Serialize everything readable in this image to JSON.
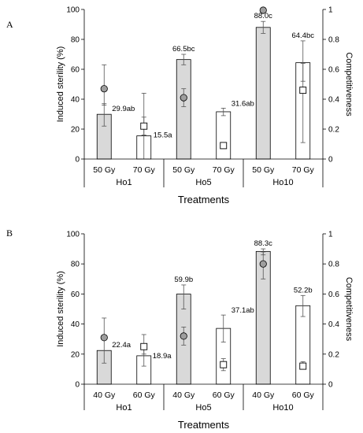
{
  "chart_data": [
    {
      "type": "bar",
      "panel": "A",
      "xlabel": "Treatments",
      "ylabel": "Induced sterility (%)",
      "y2label": "Competitiveness",
      "ylim": [
        0,
        100
      ],
      "y2lim": [
        0,
        1
      ],
      "yticks": [
        "0",
        "20",
        "40",
        "60",
        "80",
        "100"
      ],
      "y2ticks": [
        "0",
        "0.2",
        "0.4",
        "0.6",
        "0.8",
        "1"
      ],
      "groups": [
        "Ho1",
        "Ho5",
        "Ho10"
      ],
      "doses": [
        "50 Gy",
        "70 Gy",
        "50 Gy",
        "70 Gy",
        "50 Gy",
        "70 Gy"
      ],
      "bars": [
        {
          "value": 29.9,
          "low": 22,
          "high": 37,
          "label": "29.9ab",
          "fill": "#d9d9d9"
        },
        {
          "value": 15.5,
          "low": 0,
          "high": 44,
          "label": "15.5a",
          "fill": "#ffffff"
        },
        {
          "value": 66.5,
          "low": 63,
          "high": 70,
          "label": "66.5bc",
          "fill": "#d9d9d9"
        },
        {
          "value": 31.6,
          "low": 29,
          "high": 34,
          "label": "31.6ab",
          "fill": "#ffffff"
        },
        {
          "value": 88.0,
          "low": 84,
          "high": 92,
          "label": "88.0c",
          "fill": "#d9d9d9"
        },
        {
          "value": 64.4,
          "low": 52,
          "high": 79,
          "label": "64.4bc",
          "fill": "#ffffff"
        }
      ],
      "competitiveness": [
        {
          "value": 0.47,
          "low": 0.36,
          "high": 0.63,
          "marker": "circle"
        },
        {
          "value": 0.22,
          "low": 0.16,
          "high": 0.28,
          "marker": "square"
        },
        {
          "value": 0.41,
          "low": 0.35,
          "high": 0.47,
          "marker": "circle"
        },
        {
          "value": 0.09,
          "low": 0.07,
          "high": 0.11,
          "marker": "square"
        },
        {
          "value": 1.0,
          "low": 1.0,
          "high": 1.0,
          "marker": "circle"
        },
        {
          "value": 0.46,
          "low": 0.11,
          "high": 0.64,
          "marker": "square"
        }
      ]
    },
    {
      "type": "bar",
      "panel": "B",
      "xlabel": "Treatments",
      "ylabel": "Induced sterility (%)",
      "y2label": "Competitiveness",
      "ylim": [
        0,
        100
      ],
      "y2lim": [
        0,
        1
      ],
      "yticks": [
        "0",
        "20",
        "40",
        "60",
        "80",
        "100"
      ],
      "y2ticks": [
        "0",
        "0.2",
        "0.4",
        "0.6",
        "0.8",
        "1"
      ],
      "groups": [
        "Ho1",
        "Ho5",
        "Ho10"
      ],
      "doses": [
        "40 Gy",
        "60 Gy",
        "40 Gy",
        "60 Gy",
        "40 Gy",
        "60 Gy"
      ],
      "bars": [
        {
          "value": 22.4,
          "low": 14,
          "high": 30,
          "label": "22.4a",
          "fill": "#d9d9d9"
        },
        {
          "value": 18.9,
          "low": 12,
          "high": 26,
          "label": "18.9a",
          "fill": "#ffffff"
        },
        {
          "value": 59.9,
          "low": 50,
          "high": 66,
          "label": "59.9b",
          "fill": "#d9d9d9"
        },
        {
          "value": 37.1,
          "low": 28,
          "high": 46,
          "label": "37.1ab",
          "fill": "#ffffff"
        },
        {
          "value": 88.3,
          "low": 86,
          "high": 90,
          "label": "88.3c",
          "fill": "#d9d9d9"
        },
        {
          "value": 52.2,
          "low": 45,
          "high": 59,
          "label": "52.2b",
          "fill": "#ffffff"
        }
      ],
      "competitiveness": [
        {
          "value": 0.31,
          "low": 0.31,
          "high": 0.44,
          "marker": "circle"
        },
        {
          "value": 0.25,
          "low": 0.2,
          "high": 0.33,
          "marker": "square"
        },
        {
          "value": 0.32,
          "low": 0.26,
          "high": 0.38,
          "marker": "circle"
        },
        {
          "value": 0.13,
          "low": 0.09,
          "high": 0.17,
          "marker": "square"
        },
        {
          "value": 0.8,
          "low": 0.7,
          "high": 0.88,
          "marker": "circle"
        },
        {
          "value": 0.12,
          "low": 0.1,
          "high": 0.15,
          "marker": "square"
        }
      ]
    }
  ]
}
